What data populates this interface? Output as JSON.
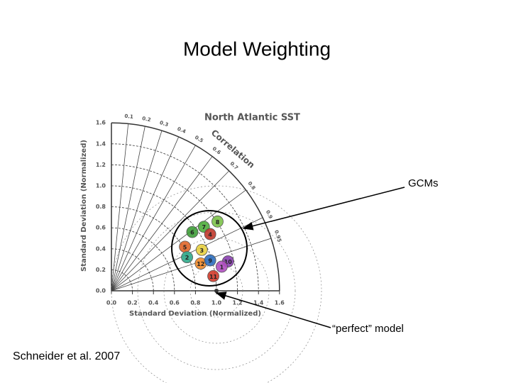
{
  "title": "Model Weighting",
  "diagram": {
    "title": "North Atlantic SST",
    "arc_label": "Correlation",
    "x_label": "Standard Deviation (Normalized)",
    "y_label": "Standard Deviation (Normalized)",
    "x_ticks": [
      {
        "value": 0,
        "label": "0.0"
      },
      {
        "value": 0.2,
        "label": "0.2"
      },
      {
        "value": 0.4,
        "label": "0.4"
      },
      {
        "value": 0.6,
        "label": "0.6"
      },
      {
        "value": 0.8,
        "label": "0.8"
      },
      {
        "value": 1,
        "label": "1.0"
      },
      {
        "value": 1.2,
        "label": "1.2"
      },
      {
        "value": 1.4,
        "label": "1.4"
      },
      {
        "value": 1.6,
        "label": "1.6"
      }
    ],
    "y_ticks": [
      {
        "value": 0,
        "label": "0.0"
      },
      {
        "value": 0.2,
        "label": "0.2"
      },
      {
        "value": 0.4,
        "label": "0.4"
      },
      {
        "value": 0.6,
        "label": "0.6"
      },
      {
        "value": 0.8,
        "label": "0.8"
      },
      {
        "value": 1,
        "label": "1.0"
      },
      {
        "value": 1.2,
        "label": "1.2"
      },
      {
        "value": 1.4,
        "label": "1.4"
      },
      {
        "value": 1.6,
        "label": "1.6"
      }
    ],
    "correlation_ticks": [
      0.1,
      0.2,
      0.3,
      0.4,
      0.5,
      0.6,
      0.7,
      0.8,
      0.9,
      0.95
    ],
    "points": [
      {
        "label": "8",
        "color": "#7cc24a",
        "sd_x": 1.01,
        "sd_y": 0.66
      },
      {
        "label": "7",
        "color": "#4fae3c",
        "sd_x": 0.88,
        "sd_y": 0.61
      },
      {
        "label": "6",
        "color": "#3f9d3a",
        "sd_x": 0.77,
        "sd_y": 0.56
      },
      {
        "label": "4",
        "color": "#c0392b",
        "sd_x": 0.94,
        "sd_y": 0.54
      },
      {
        "label": "5",
        "color": "#e0662a",
        "sd_x": 0.7,
        "sd_y": 0.42
      },
      {
        "label": "3",
        "color": "#e8d040",
        "sd_x": 0.86,
        "sd_y": 0.39
      },
      {
        "label": "2",
        "color": "#2fa88a",
        "sd_x": 0.72,
        "sd_y": 0.32
      },
      {
        "label": "12",
        "color": "#f08a2a",
        "sd_x": 0.85,
        "sd_y": 0.26
      },
      {
        "label": "9",
        "color": "#2f6fbf",
        "sd_x": 0.94,
        "sd_y": 0.29
      },
      {
        "label": "10",
        "color": "#8a3fb0",
        "sd_x": 1.11,
        "sd_y": 0.28
      },
      {
        "label": "1",
        "color": "#b04fc0",
        "sd_x": 1.05,
        "sd_y": 0.23
      },
      {
        "label": "11",
        "color": "#d03a2a",
        "sd_x": 0.97,
        "sd_y": 0.14
      }
    ]
  },
  "callouts": {
    "gcms": "GCMs",
    "perfect": "“perfect” model"
  },
  "citation": "Schneider et al. 2007"
}
